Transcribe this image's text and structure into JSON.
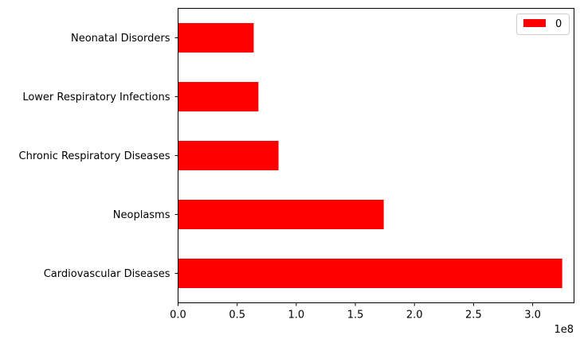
{
  "chart_data": {
    "type": "bar",
    "orientation": "horizontal",
    "categories": [
      "Cardiovascular Diseases",
      "Neoplasms",
      "Chronic Respiratory Diseases",
      "Lower Respiratory Infections",
      "Neonatal Disorders"
    ],
    "series": [
      {
        "name": "0",
        "values": [
          325000000,
          174000000,
          85000000,
          68000000,
          64000000
        ],
        "color": "#ff0000"
      }
    ],
    "xlim": [
      0,
      335000000
    ],
    "xticks": [
      0,
      50000000,
      100000000,
      150000000,
      200000000,
      250000000,
      300000000
    ],
    "xtick_labels": [
      "0.0",
      "0.5",
      "1.0",
      "1.5",
      "2.0",
      "2.5",
      "3.0"
    ],
    "offset_label": "1e8",
    "legend": {
      "position": "top-right",
      "label": "0"
    },
    "grid": false
  }
}
